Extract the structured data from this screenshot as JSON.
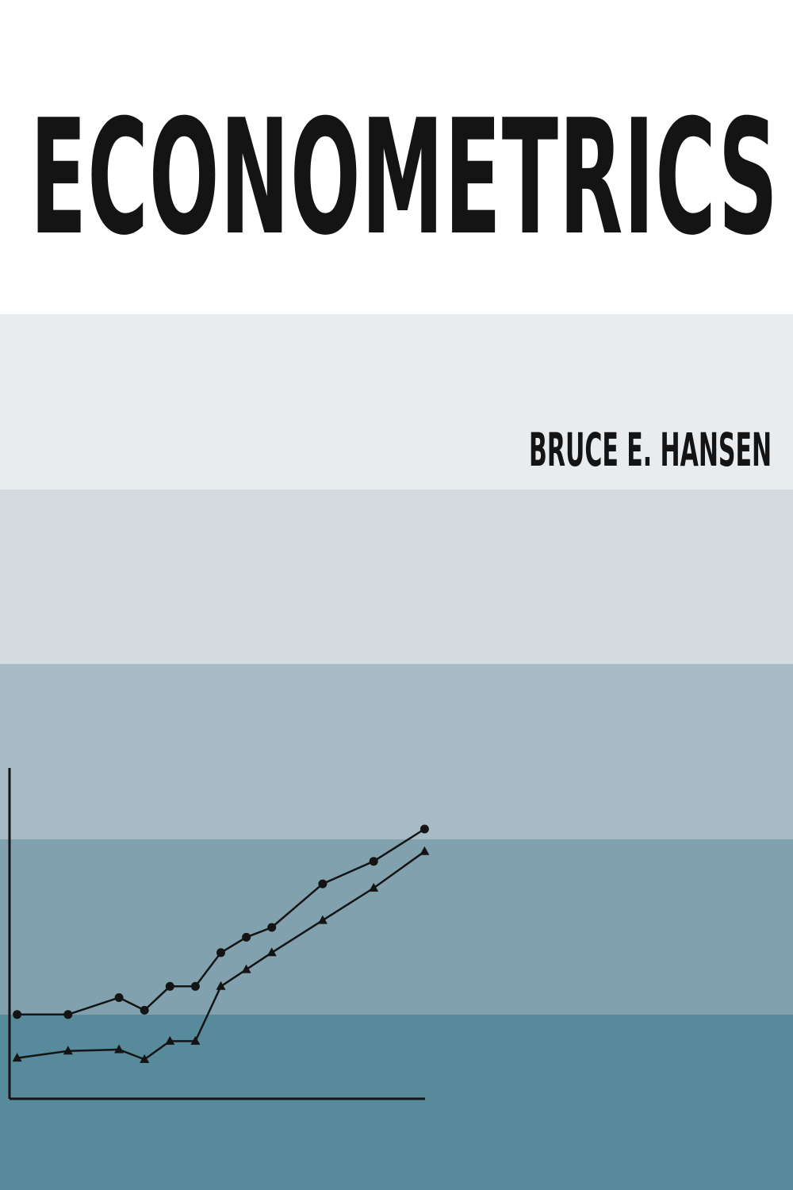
{
  "cover": {
    "title": "ECONOMETRICS",
    "author": "BRUCE E. HANSEN",
    "colors": {
      "text": "#141414",
      "bands": [
        "#ffffff",
        "#e8ecef",
        "#d3dbe1",
        "#a8bbc4",
        "#80a1ad",
        "#578a9a"
      ]
    }
  },
  "chart_data": {
    "type": "line",
    "series": [
      {
        "marker": "circle",
        "values": [
          [
            1,
            3.0
          ],
          [
            3,
            3.0
          ],
          [
            5,
            3.6
          ],
          [
            6,
            3.15
          ],
          [
            7,
            4.0
          ],
          [
            8,
            4.0
          ],
          [
            9,
            5.2
          ],
          [
            10,
            5.75
          ],
          [
            11,
            6.1
          ],
          [
            13,
            7.65
          ],
          [
            15,
            8.45
          ],
          [
            17,
            9.6
          ]
        ]
      },
      {
        "marker": "triangle",
        "values": [
          [
            1,
            1.45
          ],
          [
            3,
            1.7
          ],
          [
            5,
            1.75
          ],
          [
            6,
            1.4
          ],
          [
            7,
            2.05
          ],
          [
            8,
            2.05
          ],
          [
            9,
            4.0
          ],
          [
            10,
            4.6
          ],
          [
            11,
            5.2
          ],
          [
            13,
            6.35
          ],
          [
            15,
            7.5
          ],
          [
            17,
            8.8
          ]
        ]
      }
    ],
    "xlim": [
      0.7,
      17.3
    ],
    "ylim": [
      0,
      12
    ],
    "color": "#141414"
  }
}
